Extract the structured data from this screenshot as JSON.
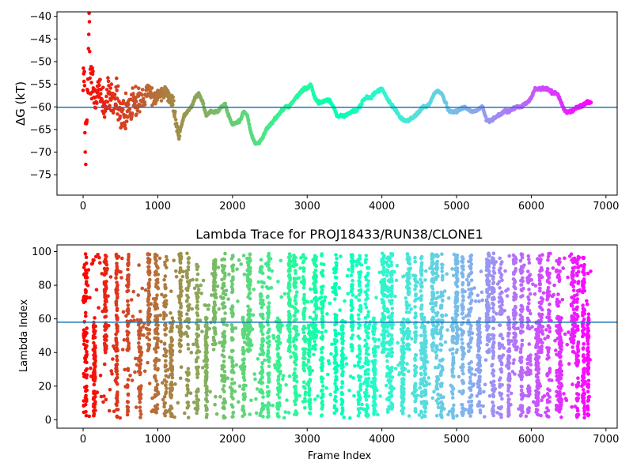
{
  "chart_data": [
    {
      "type": "scatter",
      "title": "",
      "xlabel": "",
      "ylabel": "ΔG (kT)",
      "xlim": [
        -350,
        7150
      ],
      "ylim": [
        -79.5,
        -39
      ],
      "xticks": [
        0,
        1000,
        2000,
        3000,
        4000,
        5000,
        6000,
        7000
      ],
      "yticks": [
        -75,
        -70,
        -65,
        -60,
        -55,
        -50,
        -45,
        -40
      ],
      "grid": false,
      "legend": "none",
      "colormap": "rainbow (red at start to violet at end, by frame index)",
      "reference_line": {
        "y": -60.1,
        "color": "#1f77b4"
      },
      "series": [
        {
          "frames": [
            0,
            20,
            40,
            60,
            80,
            100,
            150,
            200,
            250,
            300,
            350,
            400,
            450,
            500,
            550,
            600,
            650,
            700,
            750,
            800,
            850,
            900,
            950,
            1000,
            1050,
            1100,
            1150,
            1200,
            1250,
            1280,
            1300,
            1350,
            1400,
            1450,
            1500,
            1550,
            1600,
            1650,
            1700,
            1750,
            1800,
            1850,
            1900,
            1950,
            2000,
            2050,
            2100,
            2150,
            2200,
            2250,
            2300,
            2350,
            2400,
            2450,
            2500,
            2550,
            2600,
            2650,
            2700,
            2750,
            2800,
            2850,
            2900,
            2950,
            3000,
            3050,
            3100,
            3150,
            3200,
            3250,
            3300,
            3350,
            3400,
            3450,
            3500,
            3550,
            3600,
            3650,
            3700,
            3750,
            3800,
            3850,
            3900,
            3950,
            4000,
            4050,
            4100,
            4150,
            4200,
            4250,
            4300,
            4350,
            4400,
            4450,
            4500,
            4550,
            4600,
            4650,
            4700,
            4750,
            4800,
            4850,
            4900,
            4950,
            5000,
            5050,
            5100,
            5150,
            5200,
            5250,
            5300,
            5350,
            5400,
            5450,
            5500,
            5550,
            5600,
            5650,
            5700,
            5750,
            5800,
            5850,
            5900,
            5950,
            6000,
            6050,
            6100,
            6150,
            6200,
            6250,
            6300,
            6350,
            6400,
            6450,
            6500,
            6550,
            6600,
            6650,
            6700,
            6750,
            6800
          ],
          "running_dG": [
            -50,
            -60,
            -70,
            -58,
            -45,
            -55,
            -57,
            -56,
            -58,
            -60,
            -57,
            -59,
            -58,
            -62,
            -64,
            -61,
            -60,
            -59,
            -58,
            -60,
            -56,
            -57,
            -58,
            -57,
            -57,
            -56,
            -58,
            -59,
            -64,
            -67,
            -65,
            -62,
            -61,
            -60,
            -58,
            -57,
            -59,
            -62,
            -61,
            -61,
            -61,
            -60,
            -59.5,
            -62,
            -64,
            -63.5,
            -63,
            -61,
            -62,
            -66,
            -68,
            -68,
            -67,
            -65,
            -64,
            -63,
            -62,
            -61,
            -60,
            -60,
            -59,
            -58,
            -57,
            -56,
            -56,
            -55,
            -58,
            -59,
            -59,
            -58.5,
            -58.5,
            -60,
            -62,
            -62,
            -62,
            -61.5,
            -61,
            -61,
            -60,
            -58.5,
            -58,
            -58,
            -57,
            -56.5,
            -56,
            -57.5,
            -59,
            -60,
            -61,
            -62.5,
            -63,
            -63,
            -62.5,
            -62,
            -61,
            -60,
            -60,
            -59,
            -57,
            -56.5,
            -57,
            -59,
            -61,
            -61,
            -61,
            -60.5,
            -60,
            -60.5,
            -61,
            -61,
            -60.5,
            -60,
            -63,
            -63,
            -62.5,
            -62,
            -61.5,
            -61,
            -61,
            -60.5,
            -60,
            -60,
            -59.5,
            -59,
            -58,
            -56,
            -56,
            -56,
            -56,
            -56.5,
            -57,
            -57,
            -59,
            -61,
            -61,
            -61,
            -60,
            -60,
            -59.5,
            -59,
            -59
          ]
        }
      ]
    },
    {
      "type": "scatter",
      "title": "Lambda Trace for PROJ18433/RUN38/CLONE1",
      "xlabel": "Frame Index",
      "ylabel": "Lambda Index",
      "xlim": [
        -350,
        7150
      ],
      "ylim": [
        -5,
        104
      ],
      "xticks": [
        0,
        1000,
        2000,
        3000,
        4000,
        5000,
        6000,
        7000
      ],
      "yticks": [
        0,
        20,
        40,
        60,
        80,
        100
      ],
      "grid": false,
      "legend": "none",
      "colormap": "rainbow (red at start to violet at end, by frame index)",
      "reference_line": {
        "y": 58,
        "color": "#1f77b4"
      },
      "lambda_range": [
        1,
        99
      ],
      "frame_range": [
        0,
        6800
      ],
      "sweep_centers": [
        30,
        150,
        300,
        450,
        600,
        760,
        880,
        980,
        1100,
        1180,
        1300,
        1400,
        1530,
        1650,
        1760,
        1880,
        2000,
        2150,
        2220,
        2390,
        2480,
        2620,
        2760,
        2840,
        2960,
        3030,
        3100,
        3200,
        3380,
        3470,
        3600,
        3700,
        3800,
        3900,
        4020,
        4090,
        4130,
        4280,
        4350,
        4450,
        4530,
        4580,
        4680,
        4740,
        4800,
        4950,
        5000,
        5080,
        5180,
        5300,
        5420,
        5490,
        5590,
        5700,
        5780,
        5870,
        5970,
        6080,
        6130,
        6230,
        6360,
        6390,
        6560,
        6620,
        6700,
        6760
      ]
    }
  ]
}
